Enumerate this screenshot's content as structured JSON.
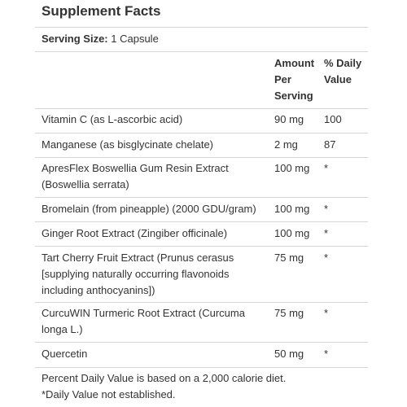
{
  "title": "Supplement Facts",
  "serving": {
    "label": "Serving Size:",
    "value": "1 Capsule"
  },
  "columns": {
    "amount_line1": "Amount",
    "amount_line2": "Per",
    "amount_line3": "Serving",
    "dv_line1": "% Daily",
    "dv_line2": "Value"
  },
  "rows": [
    {
      "name_lines": [
        "Vitamin C (as L-ascorbic acid)"
      ],
      "amount": "90 mg",
      "dv": "100"
    },
    {
      "name_lines": [
        "Manganese (as bisglycinate chelate)"
      ],
      "amount": "2 mg",
      "dv": "87"
    },
    {
      "name_lines": [
        "ApresFlex Boswellia Gum Resin Extract",
        "(Boswellia serrata)"
      ],
      "amount": "100 mg",
      "dv": "*"
    },
    {
      "name_lines": [
        "Bromelain (from pineapple) (2000 GDU/gram)"
      ],
      "amount": "100 mg",
      "dv": "*"
    },
    {
      "name_lines": [
        "Ginger Root Extract (Zingiber officinale)"
      ],
      "amount": "100 mg",
      "dv": "*"
    },
    {
      "name_lines": [
        "Tart Cherry Fruit Extract (Prunus cerasus",
        "[supplying naturally occurring flavonoids",
        "including anthocyanins])"
      ],
      "amount": "75 mg",
      "dv": "*"
    },
    {
      "name_lines": [
        "CurcuWIN Turmeric Root Extract (Curcuma",
        "longa L.)"
      ],
      "amount": "75 mg",
      "dv": "*"
    },
    {
      "name_lines": [
        "Quercetin"
      ],
      "amount": "50 mg",
      "dv": "*"
    }
  ],
  "footnotes": {
    "line1": "Percent Daily Value is based on a 2,000 calorie diet.",
    "line2": "*Daily Value not established."
  }
}
